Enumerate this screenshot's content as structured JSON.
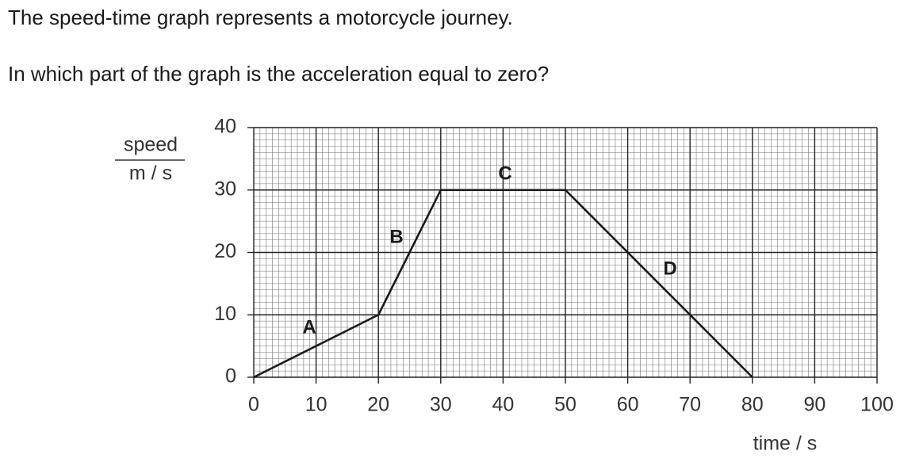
{
  "question": {
    "intro": "The speed-time graph represents a motorcycle journey.",
    "prompt": "In which part of the graph is the acceleration equal to zero?"
  },
  "chart_data": {
    "type": "line",
    "x": [
      0,
      20,
      30,
      50,
      80
    ],
    "series": [
      {
        "color": "#1a1a1a",
        "values": [
          0,
          10,
          30,
          30,
          0
        ]
      }
    ],
    "xlim": [
      0,
      100
    ],
    "xticks": [
      0,
      10,
      20,
      30,
      40,
      50,
      60,
      70,
      80,
      90,
      100
    ],
    "ylim": [
      0,
      40
    ],
    "yticks": [
      0,
      10,
      20,
      30,
      40
    ],
    "y_label": "speed",
    "y_unit": "m / s",
    "x_label": "time / s",
    "annotations": [
      "A",
      "B",
      "C",
      "D"
    ],
    "grid": true,
    "minor_grid_step": 1
  }
}
